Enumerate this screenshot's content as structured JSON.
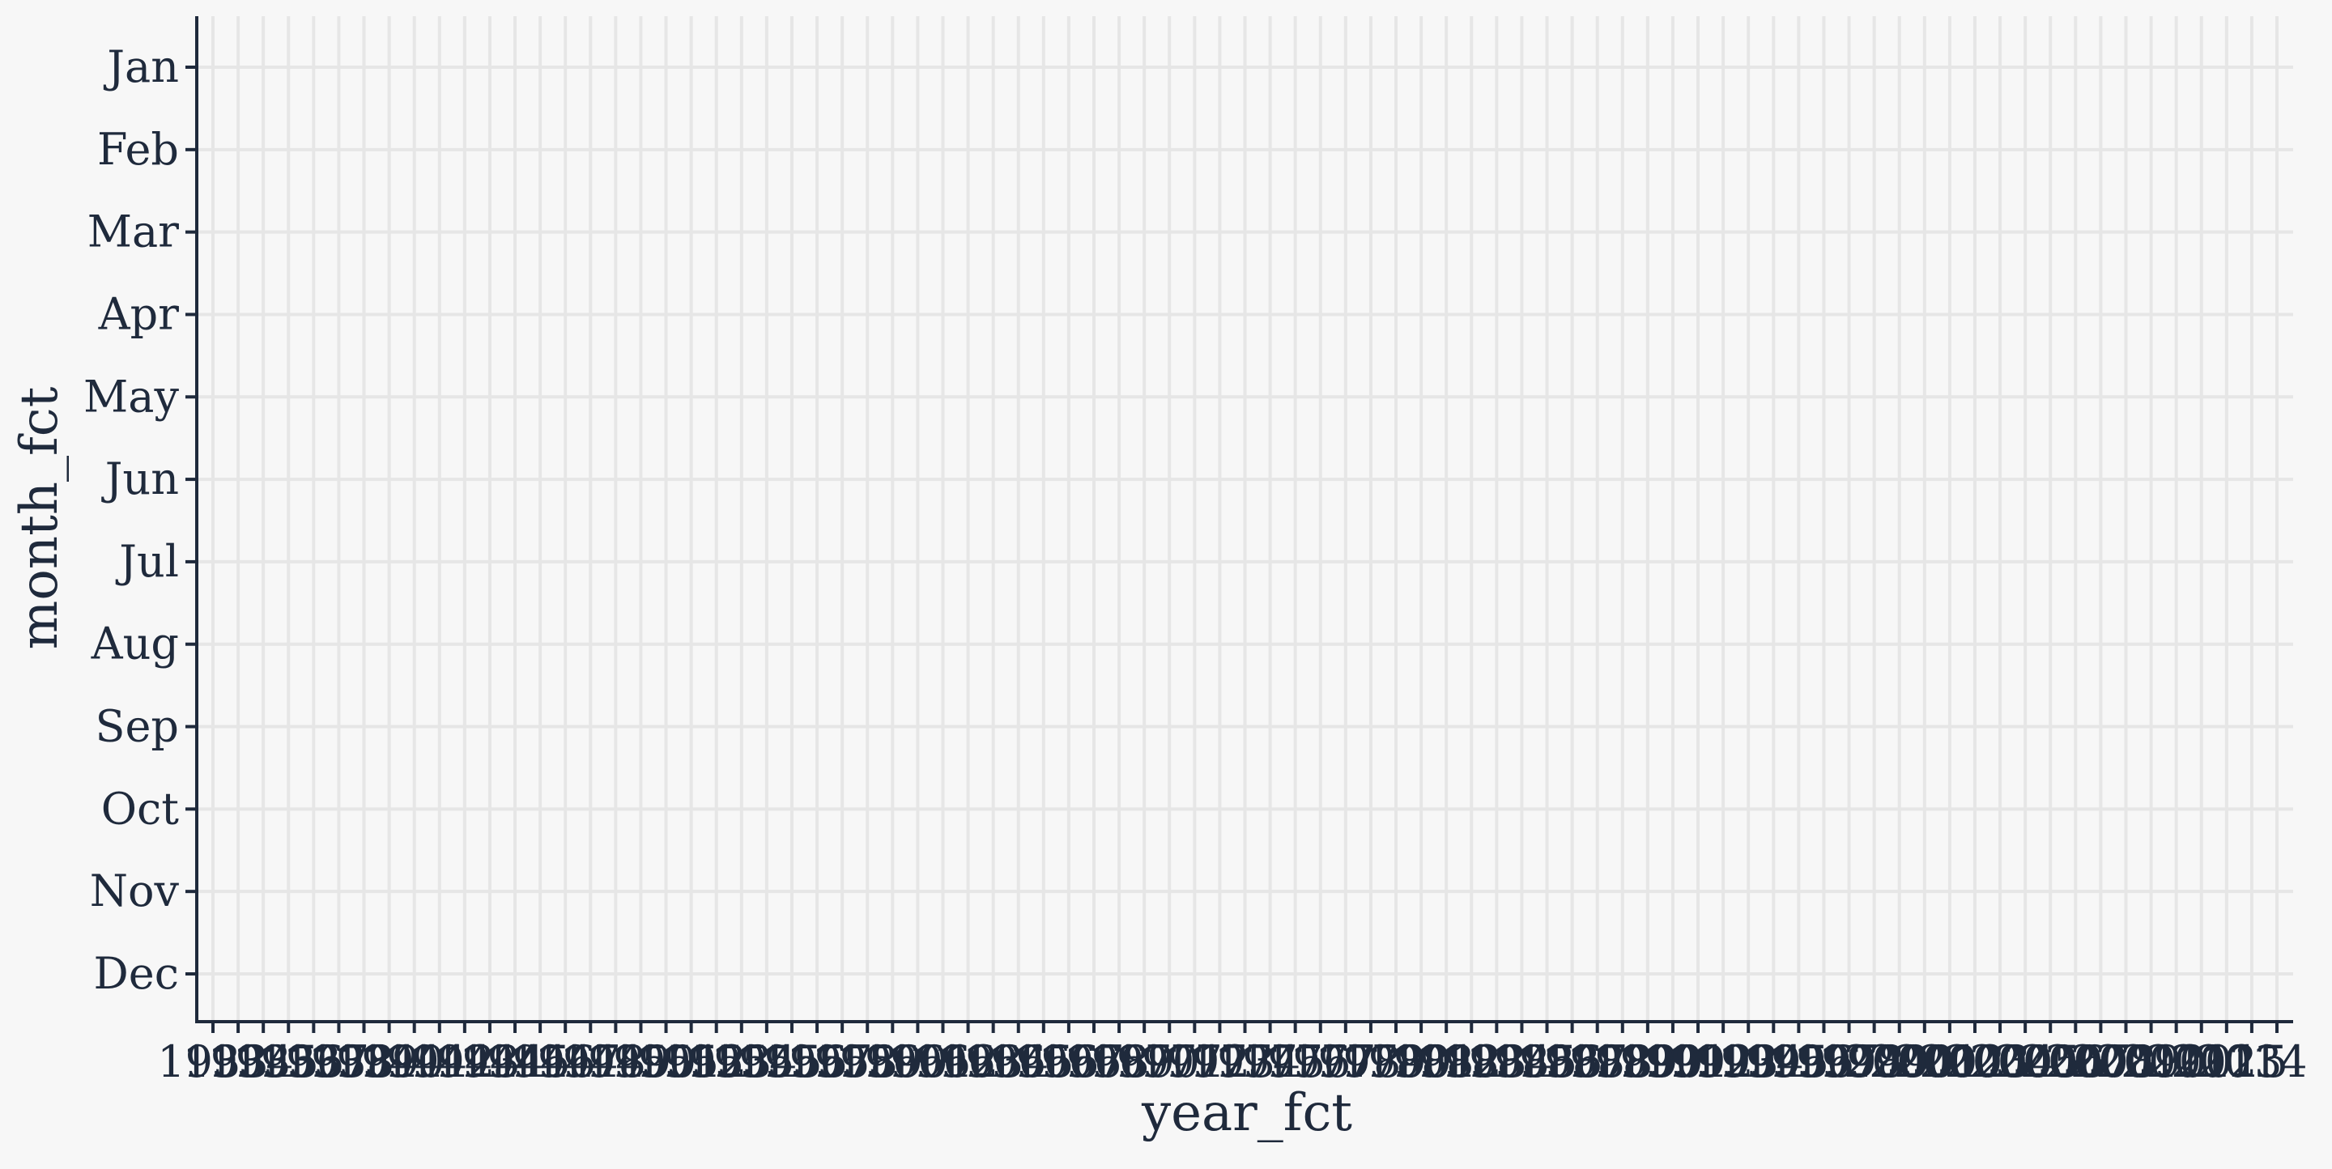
{
  "colors": {
    "background": "#f7f7f7",
    "grid": "#e6e6e6",
    "axis": "#1f2a3c",
    "text": "#1f2a3c"
  },
  "chart_data": {
    "type": "heatmap",
    "title": "",
    "xlabel": "year_fct",
    "ylabel": "month_fct",
    "grid": true,
    "legend": "none",
    "x_first_label": "1933",
    "x_last_label": "2015",
    "x_categories": [
      "1933",
      "1934",
      "1935",
      "1936",
      "1937",
      "1938",
      "1939",
      "1940",
      "1941",
      "1942",
      "1943",
      "1944",
      "1945",
      "1946",
      "1947",
      "1948",
      "1949",
      "1950",
      "1951",
      "1952",
      "1953",
      "1954",
      "1955",
      "1956",
      "1957",
      "1958",
      "1959",
      "1960",
      "1961",
      "1962",
      "1963",
      "1964",
      "1965",
      "1966",
      "1967",
      "1968",
      "1969",
      "1970",
      "1971",
      "1972",
      "1973",
      "1974",
      "1975",
      "1976",
      "1977",
      "1978",
      "1979",
      "1980",
      "1981",
      "1982",
      "1983",
      "1984",
      "1985",
      "1986",
      "1987",
      "1988",
      "1989",
      "1990",
      "1991",
      "1992",
      "1993",
      "1994",
      "1995",
      "1996",
      "1997",
      "1998",
      "1999",
      "2000",
      "2001",
      "2002",
      "2003",
      "2004",
      "2005",
      "2006",
      "2007",
      "2008",
      "2009",
      "2010",
      "2011",
      "2012",
      "2013",
      "2014",
      "2015"
    ],
    "y_categories": [
      "Jan",
      "Feb",
      "Mar",
      "Apr",
      "May",
      "Jun",
      "Jul",
      "Aug",
      "Sep",
      "Oct",
      "Nov",
      "Dec"
    ],
    "values": []
  }
}
